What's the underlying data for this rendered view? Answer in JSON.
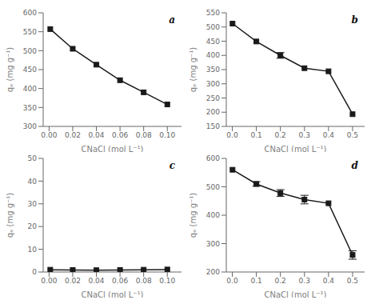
{
  "chart_data": [
    {
      "type": "line",
      "x": [
        0.001,
        0.02,
        0.04,
        0.06,
        0.08,
        0.1
      ],
      "values": [
        557,
        505,
        463,
        422,
        390,
        358
      ],
      "yerr": [
        null,
        null,
        null,
        null,
        null,
        null
      ],
      "xlabel": "CNaCl (mol L⁻¹)",
      "ylabel": "qₑ (mg g⁻¹)",
      "xlim": [
        -0.005,
        0.112
      ],
      "ylim": [
        300,
        600
      ],
      "xticks": [
        {
          "value": 0,
          "label": "0.00"
        },
        0.02,
        0.04,
        0.06,
        0.08,
        {
          "value": 0.1,
          "label": "0.10"
        }
      ],
      "yticks": [
        300,
        350,
        400,
        450,
        500,
        550,
        600
      ],
      "annotation": "a",
      "color": "#1a1a1a",
      "marker": "square",
      "grid": false
    },
    {
      "type": "line",
      "x": [
        0.001,
        0.1,
        0.2,
        0.3,
        0.4,
        0.5
      ],
      "values": [
        512,
        449,
        400,
        355,
        344,
        193
      ],
      "yerr": [
        null,
        null,
        10,
        null,
        null,
        null
      ],
      "xlabel": "CNaCl (mol L⁻¹)",
      "ylabel": "qₑ (mg g⁻¹)",
      "xlim": [
        -0.025,
        0.55
      ],
      "ylim": [
        150,
        550
      ],
      "xticks": [
        {
          "value": 0,
          "label": "0.0"
        },
        0.1,
        0.2,
        0.3,
        0.4,
        0.5
      ],
      "yticks": [
        150,
        200,
        250,
        300,
        350,
        400,
        450,
        500,
        550
      ],
      "annotation": "b",
      "color": "#1a1a1a",
      "marker": "square",
      "grid": false
    },
    {
      "type": "line",
      "x": [
        0.001,
        0.02,
        0.04,
        0.06,
        0.08,
        0.1
      ],
      "values": [
        1.0,
        0.9,
        0.8,
        0.9,
        1.0,
        1.1
      ],
      "yerr": [
        null,
        null,
        null,
        null,
        null,
        null
      ],
      "xlabel": "CNaCl (mol L⁻¹)",
      "ylabel": "qₑ (mg g⁻¹)",
      "xlim": [
        -0.005,
        0.112
      ],
      "ylim": [
        0,
        50
      ],
      "xticks": [
        {
          "value": 0,
          "label": "0.00"
        },
        0.02,
        0.04,
        0.06,
        0.08,
        {
          "value": 0.1,
          "label": "0.10"
        }
      ],
      "yticks": [
        0,
        10,
        20,
        30,
        40,
        50
      ],
      "annotation": "c",
      "color": "#1a1a1a",
      "marker": "square",
      "grid": false
    },
    {
      "type": "line",
      "x": [
        0.001,
        0.1,
        0.2,
        0.3,
        0.4,
        0.5
      ],
      "values": [
        560,
        510,
        478,
        455,
        442,
        260
      ],
      "yerr": [
        null,
        8,
        12,
        15,
        null,
        15
      ],
      "xlabel": "CNaCl (mol L⁻¹)",
      "ylabel": "qₑ (mg g⁻¹)",
      "xlim": [
        -0.025,
        0.55
      ],
      "ylim": [
        200,
        600
      ],
      "xticks": [
        {
          "value": 0,
          "label": "0.0"
        },
        0.1,
        0.2,
        0.3,
        0.4,
        0.5
      ],
      "yticks": [
        200,
        300,
        400,
        500,
        600
      ],
      "annotation": "d",
      "color": "#1a1a1a",
      "marker": "square",
      "grid": false
    }
  ]
}
